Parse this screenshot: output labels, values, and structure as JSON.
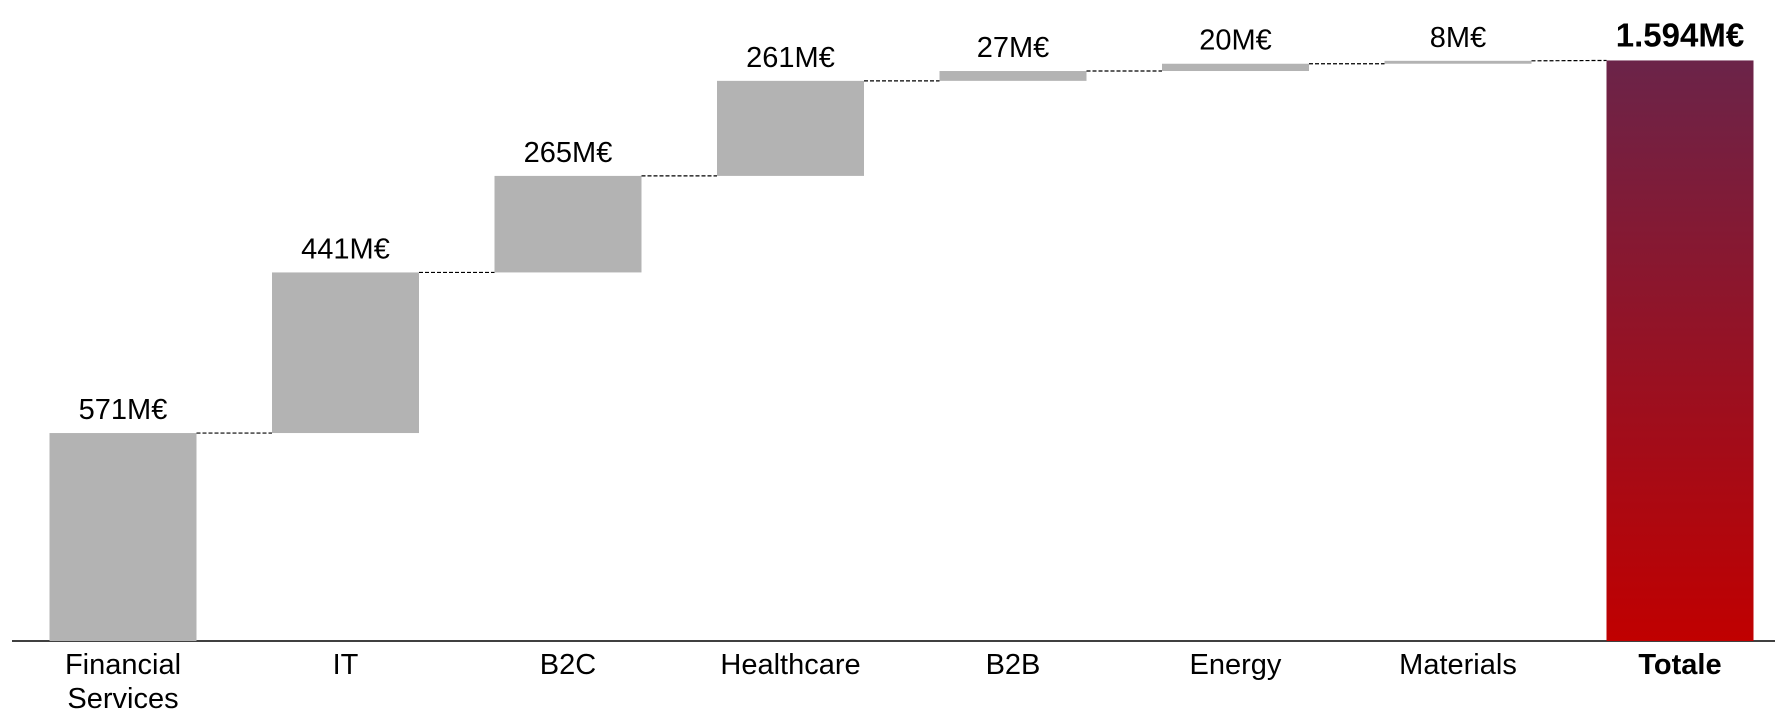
{
  "chart_data": {
    "type": "waterfall",
    "categories": [
      "Financial Services",
      "IT",
      "B2C",
      "Healthcare",
      "B2B",
      "Energy",
      "Materials",
      "Totale"
    ],
    "values": [
      571,
      441,
      265,
      261,
      27,
      20,
      8,
      1594
    ],
    "value_labels": [
      "571M€",
      "441M€",
      "265M€",
      "261M€",
      "27M€",
      "20M€",
      "8M€",
      "1.594M€"
    ],
    "measures": [
      "relative",
      "relative",
      "relative",
      "relative",
      "relative",
      "relative",
      "relative",
      "total"
    ],
    "color": "#b3b3b3",
    "total_colors": [
      "#6b2449",
      "#c00000"
    ],
    "ylim": [
      0,
      1760
    ]
  }
}
